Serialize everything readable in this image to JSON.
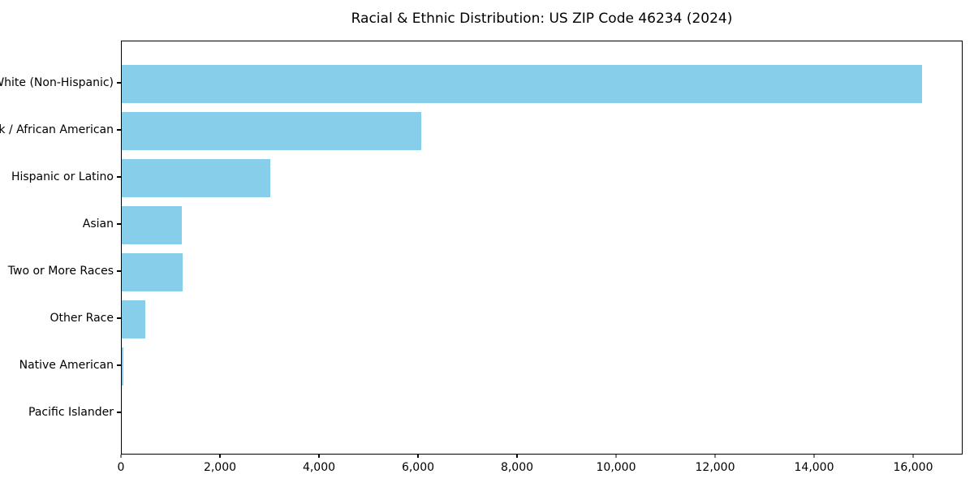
{
  "chart_data": {
    "type": "bar",
    "orientation": "horizontal",
    "title": "Racial & Ethnic Distribution: US ZIP Code 46234 (2024)",
    "categories": [
      "White (Non-Hispanic)",
      "Black / African American",
      "Hispanic or Latino",
      "Asian",
      "Two or More Races",
      "Other Race",
      "Native American",
      "Pacific Islander"
    ],
    "values": [
      16200,
      6060,
      3010,
      1220,
      1230,
      480,
      40,
      0
    ],
    "xlabel": "",
    "ylabel": "",
    "xlim": [
      0,
      17000
    ],
    "xticks": [
      0,
      2000,
      4000,
      6000,
      8000,
      10000,
      12000,
      14000,
      16000
    ],
    "xtick_labels": [
      "0",
      "2,000",
      "4,000",
      "6,000",
      "8,000",
      "10,000",
      "12,000",
      "14,000",
      "16,000"
    ],
    "bar_color": "#87CEEB",
    "axis_color": "#000000",
    "text_color": "#000000",
    "grid": false,
    "legend_position": "none"
  }
}
